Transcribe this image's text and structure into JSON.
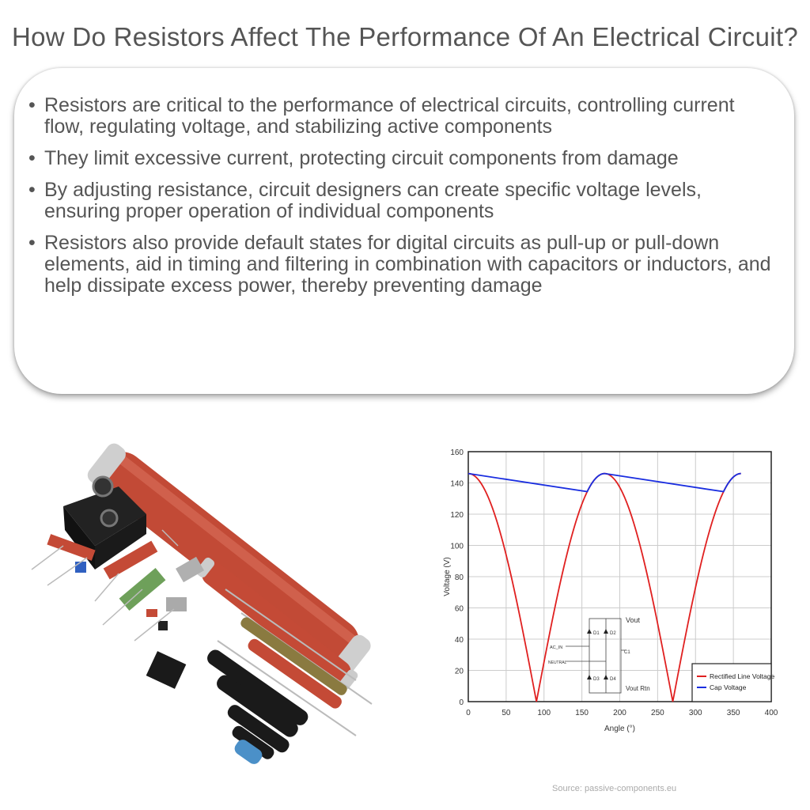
{
  "title": "How Do Resistors Affect The Performance Of An Electrical Circuit?",
  "bullets": [
    "Resistors are critical to the performance of electrical circuits, controlling current flow, regulating voltage, and stabilizing active components",
    "They limit excessive current, protecting circuit components from damage",
    "By adjusting resistance, circuit designers can create specific voltage levels, ensuring proper operation of individual components",
    "Resistors also provide default states for digital circuits as pull-up or pull-down elements, aid in timing and filtering in combination with capacitors or inductors, and help dissipate excess power, thereby preventing damage"
  ],
  "source": "Source: passive-components.eu",
  "chart_data": {
    "type": "line",
    "xlabel": "Angle (°)",
    "ylabel": "Voltage (V)",
    "xlim": [
      0,
      400
    ],
    "ylim": [
      0,
      160
    ],
    "xticks": [
      "0",
      "50",
      "100",
      "150",
      "200",
      "250",
      "300",
      "350",
      "400"
    ],
    "yticks": [
      "0",
      "20",
      "40",
      "60",
      "80",
      "100",
      "120",
      "140",
      "160"
    ],
    "grid": true,
    "legend_position": "bottom-right",
    "series": [
      {
        "name": "Rectified Line Voltage",
        "color": "#e02020",
        "x": [
          0,
          15,
          30,
          45,
          60,
          75,
          90,
          105,
          120,
          135,
          150,
          165,
          180,
          195,
          210,
          225,
          240,
          255,
          270,
          285,
          300,
          315,
          330,
          345,
          360
        ],
        "y": [
          146,
          141,
          126,
          103,
          73,
          38,
          0,
          38,
          73,
          103,
          126,
          141,
          146,
          141,
          126,
          103,
          73,
          38,
          0,
          38,
          73,
          103,
          126,
          141,
          146
        ]
      },
      {
        "name": "Cap Voltage",
        "color": "#1a2ee0",
        "x": [
          0,
          157,
          165,
          172,
          180,
          337,
          345,
          352,
          360
        ],
        "y": [
          146,
          134,
          141,
          145,
          146,
          134,
          141,
          145,
          146
        ]
      }
    ],
    "inset_labels": [
      "Vout",
      "D1",
      "D2",
      "AC_IN",
      "C1",
      "NEUTRAL",
      "D3",
      "D4",
      "Vout Rtn"
    ]
  }
}
